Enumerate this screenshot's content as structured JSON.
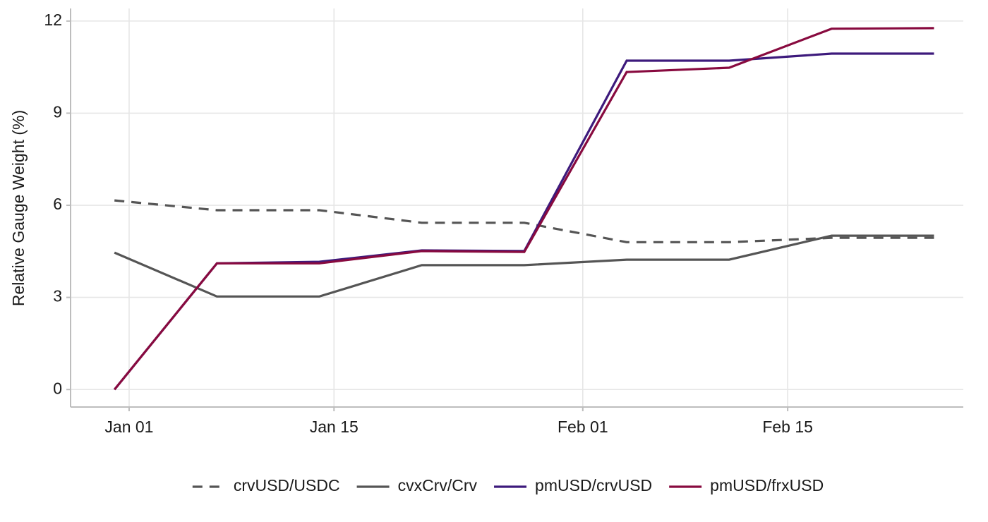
{
  "chart_data": {
    "type": "line",
    "y_label": "Relative Gauge Weight (%)",
    "x": [
      "Dec 31",
      "Jan 07",
      "Jan 14",
      "Jan 21",
      "Jan 28",
      "Feb 04",
      "Feb 11",
      "Feb 18",
      "Feb 25"
    ],
    "xlim": [
      "Dec 28",
      "Feb 27"
    ],
    "xticks": [
      "Jan 01",
      "Jan 15",
      "Feb 01",
      "Feb 15"
    ],
    "ylim": [
      -0.57,
      12.41
    ],
    "yticks": [
      0,
      3,
      6,
      9,
      12
    ],
    "grid": true,
    "legend": "bottom",
    "series": [
      {
        "name": "crvUSD/USDC",
        "color": "#555555",
        "linetype": "dashed",
        "values": [
          6.16,
          5.84,
          5.84,
          5.43,
          5.43,
          4.8,
          4.8,
          4.94,
          4.94
        ]
      },
      {
        "name": "cvxCrv/Crv",
        "color": "#555555",
        "linetype": "solid",
        "values": [
          4.46,
          3.03,
          3.03,
          4.05,
          4.05,
          4.23,
          4.23,
          5.01,
          5.01
        ]
      },
      {
        "name": "pmUSD/crvUSD",
        "color": "#3d1a7c",
        "linetype": "solid",
        "values": [
          0,
          4.11,
          4.16,
          4.53,
          4.51,
          10.71,
          10.71,
          10.94,
          10.94
        ]
      },
      {
        "name": "pmUSD/frxUSD",
        "color": "#880a3f",
        "linetype": "solid",
        "values": [
          0,
          4.11,
          4.11,
          4.51,
          4.48,
          10.34,
          10.48,
          11.75,
          11.77
        ]
      }
    ]
  }
}
